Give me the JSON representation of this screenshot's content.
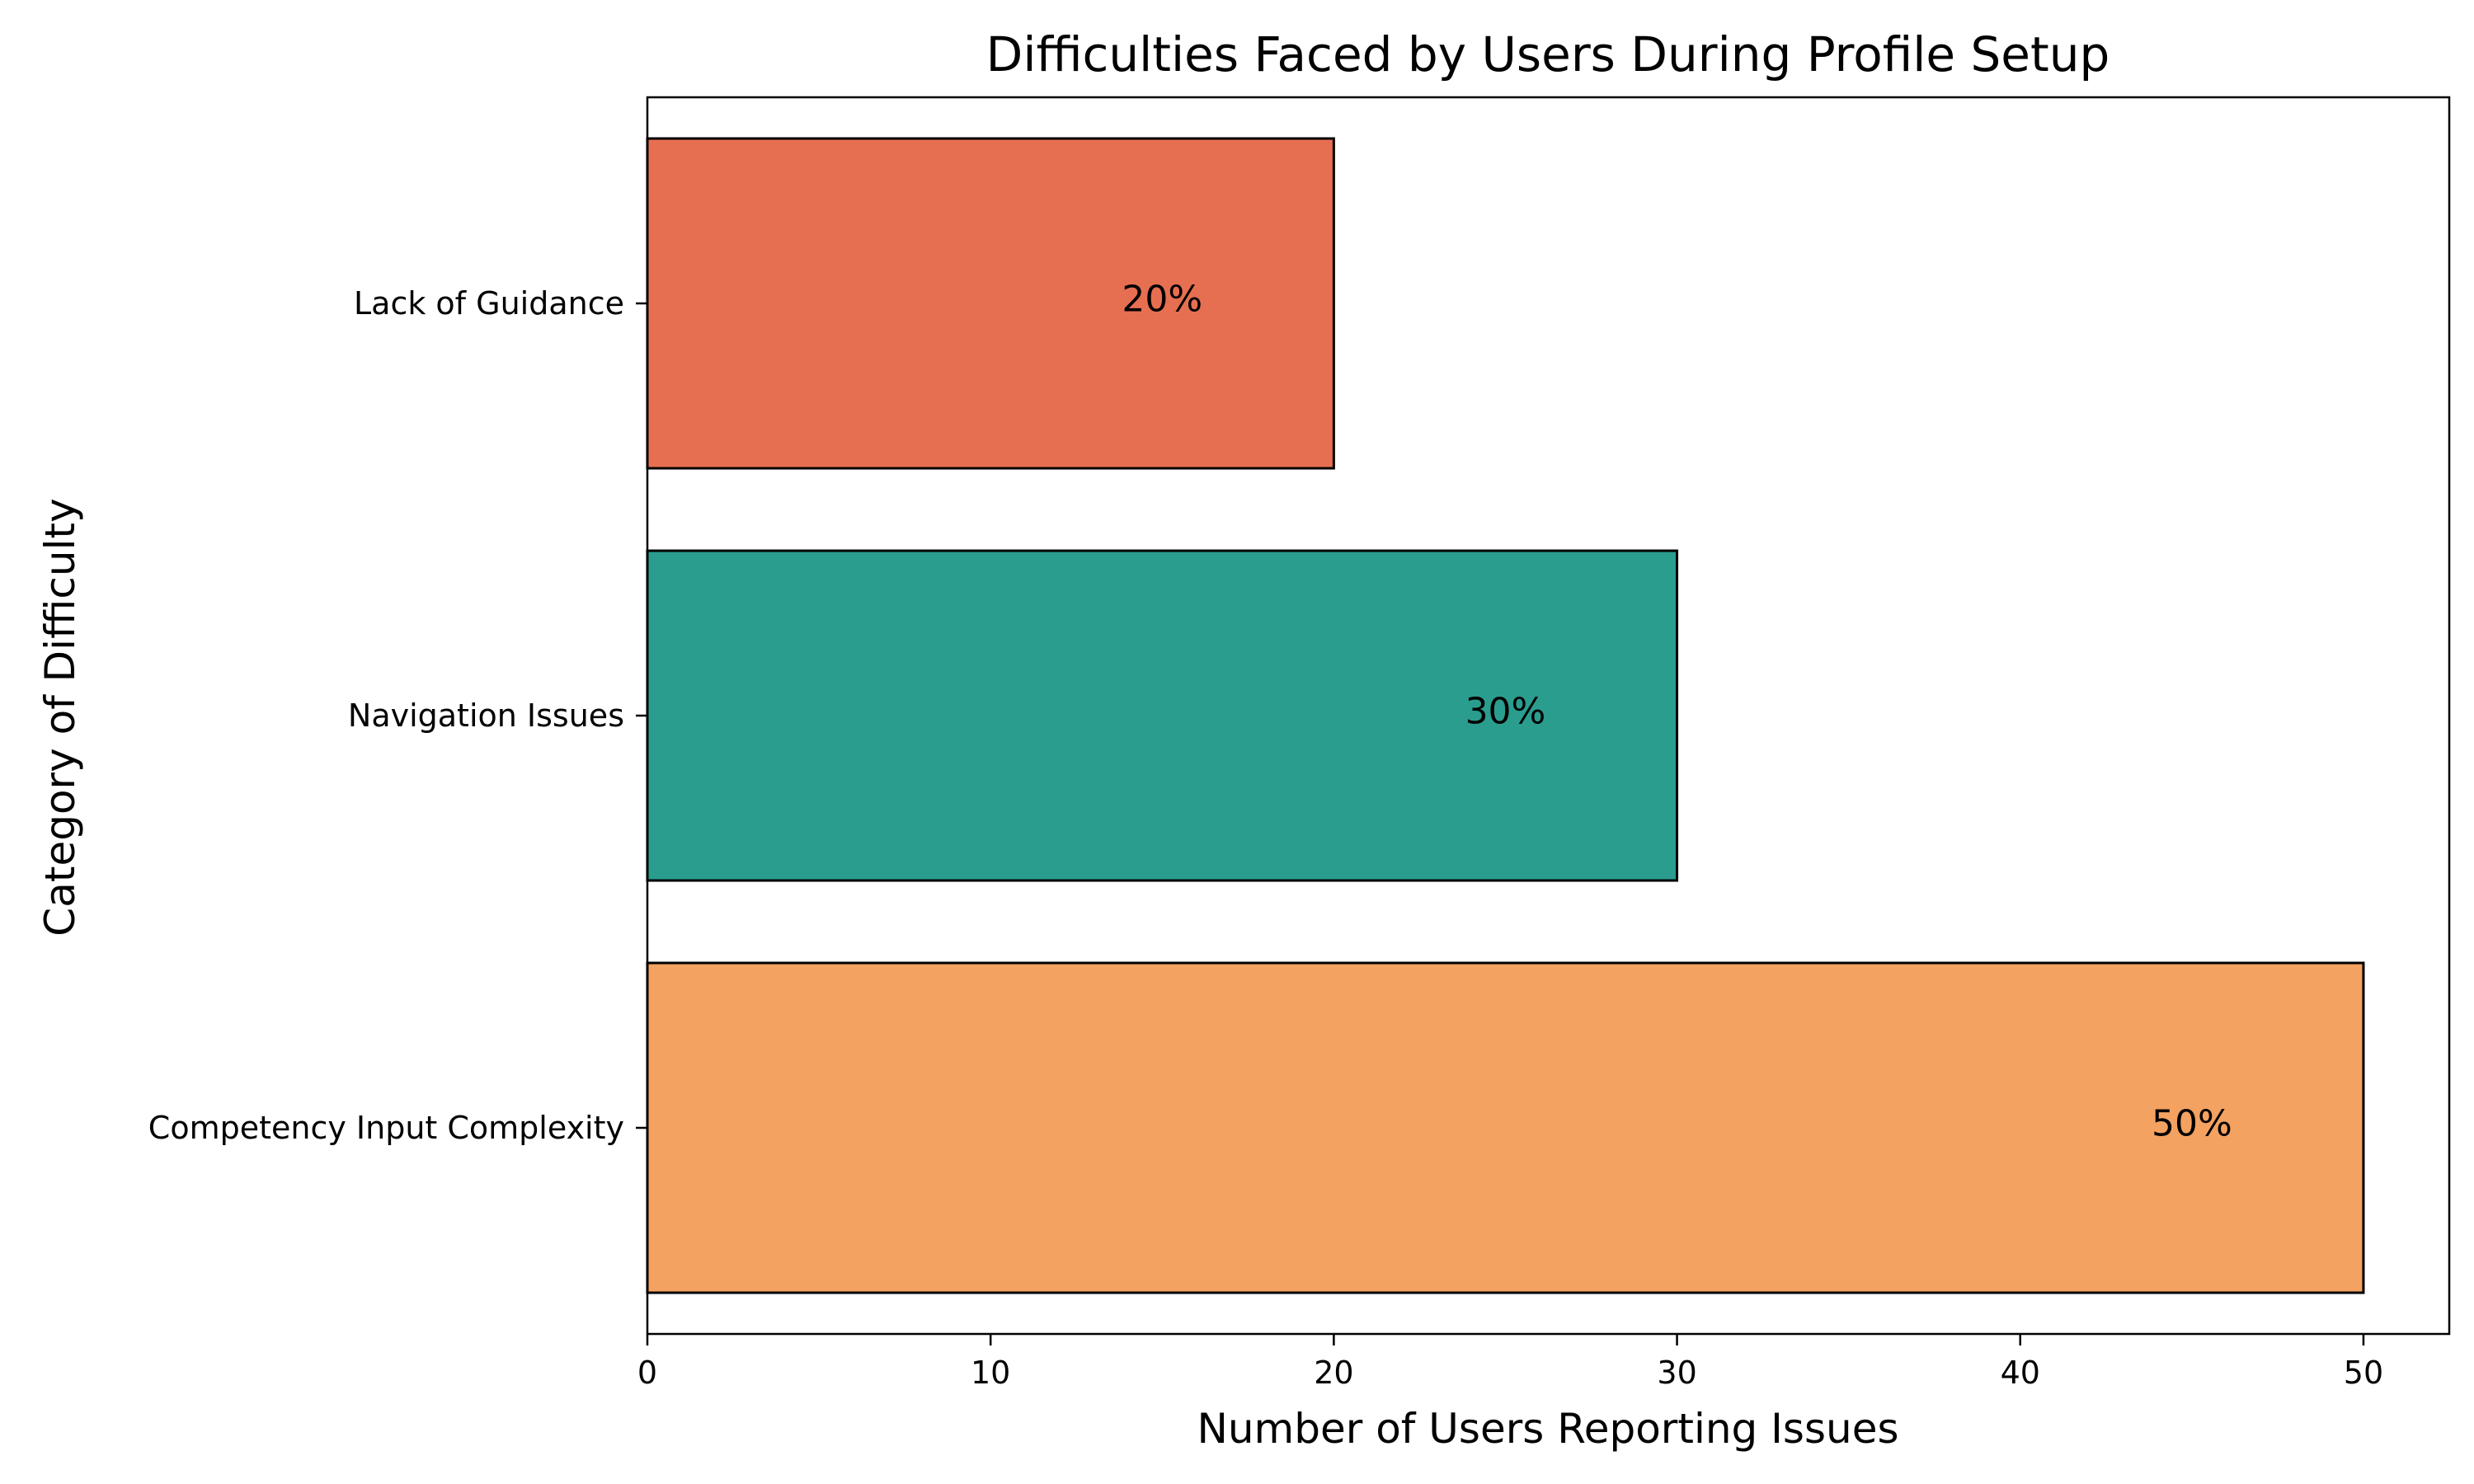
{
  "chart_data": {
    "type": "bar",
    "orientation": "horizontal",
    "title": "Difficulties Faced by Users During Profile Setup",
    "xlabel": "Number of Users Reporting Issues",
    "ylabel": "Category of Difficulty",
    "categories": [
      "Competency Input Complexity",
      "Navigation Issues",
      "Lack of Guidance"
    ],
    "values": [
      50,
      30,
      20
    ],
    "data_labels": [
      "50%",
      "30%",
      "20%"
    ],
    "colors": [
      "#F4A261",
      "#2A9D8F",
      "#E76F51"
    ],
    "xlim": [
      0,
      52.5
    ],
    "xticks": [
      0,
      10,
      20,
      30,
      40,
      50
    ],
    "grid": false,
    "legend": "none"
  }
}
